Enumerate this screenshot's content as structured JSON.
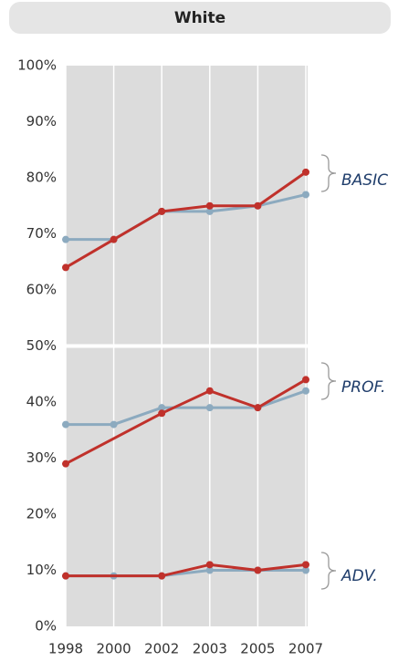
{
  "chart_data": {
    "type": "line",
    "title": "White",
    "categories": [
      "1998",
      "2000",
      "2002",
      "2003",
      "2005",
      "2007"
    ],
    "ylim": [
      0,
      100
    ],
    "yticks": [
      {
        "value": 0,
        "label": "0%"
      },
      {
        "value": 10,
        "label": "10%"
      },
      {
        "value": 20,
        "label": "20%"
      },
      {
        "value": 30,
        "label": "30%"
      },
      {
        "value": 40,
        "label": "40%"
      },
      {
        "value": 50,
        "label": "50%"
      },
      {
        "value": 60,
        "label": "60%"
      },
      {
        "value": 70,
        "label": "70%"
      },
      {
        "value": 80,
        "label": "80%"
      },
      {
        "value": 90,
        "label": "90%"
      },
      {
        "value": 100,
        "label": "100%"
      }
    ],
    "annotations": [
      "BASIC",
      "PROF.",
      "ADV."
    ],
    "series": [
      {
        "color": "#8caabf",
        "values": [
          69,
          69,
          74,
          74,
          75,
          77
        ]
      },
      {
        "color": "#c0312b",
        "values": [
          64,
          69,
          74,
          75,
          75,
          81
        ]
      },
      {
        "color": "#8caabf",
        "values": [
          36,
          36,
          39,
          39,
          39,
          42
        ]
      },
      {
        "color": "#c0312b",
        "x": [
          "1998",
          "2002",
          "2003",
          "2005",
          "2007"
        ],
        "values": [
          29,
          38,
          42,
          39,
          44
        ]
      },
      {
        "color": "#8caabf",
        "values": [
          9,
          9,
          9,
          10,
          10,
          10
        ]
      },
      {
        "color": "#c0312b",
        "x": [
          "1998",
          "2002",
          "2003",
          "2005",
          "2007"
        ],
        "values": [
          9,
          9,
          11,
          10,
          11
        ]
      }
    ]
  }
}
